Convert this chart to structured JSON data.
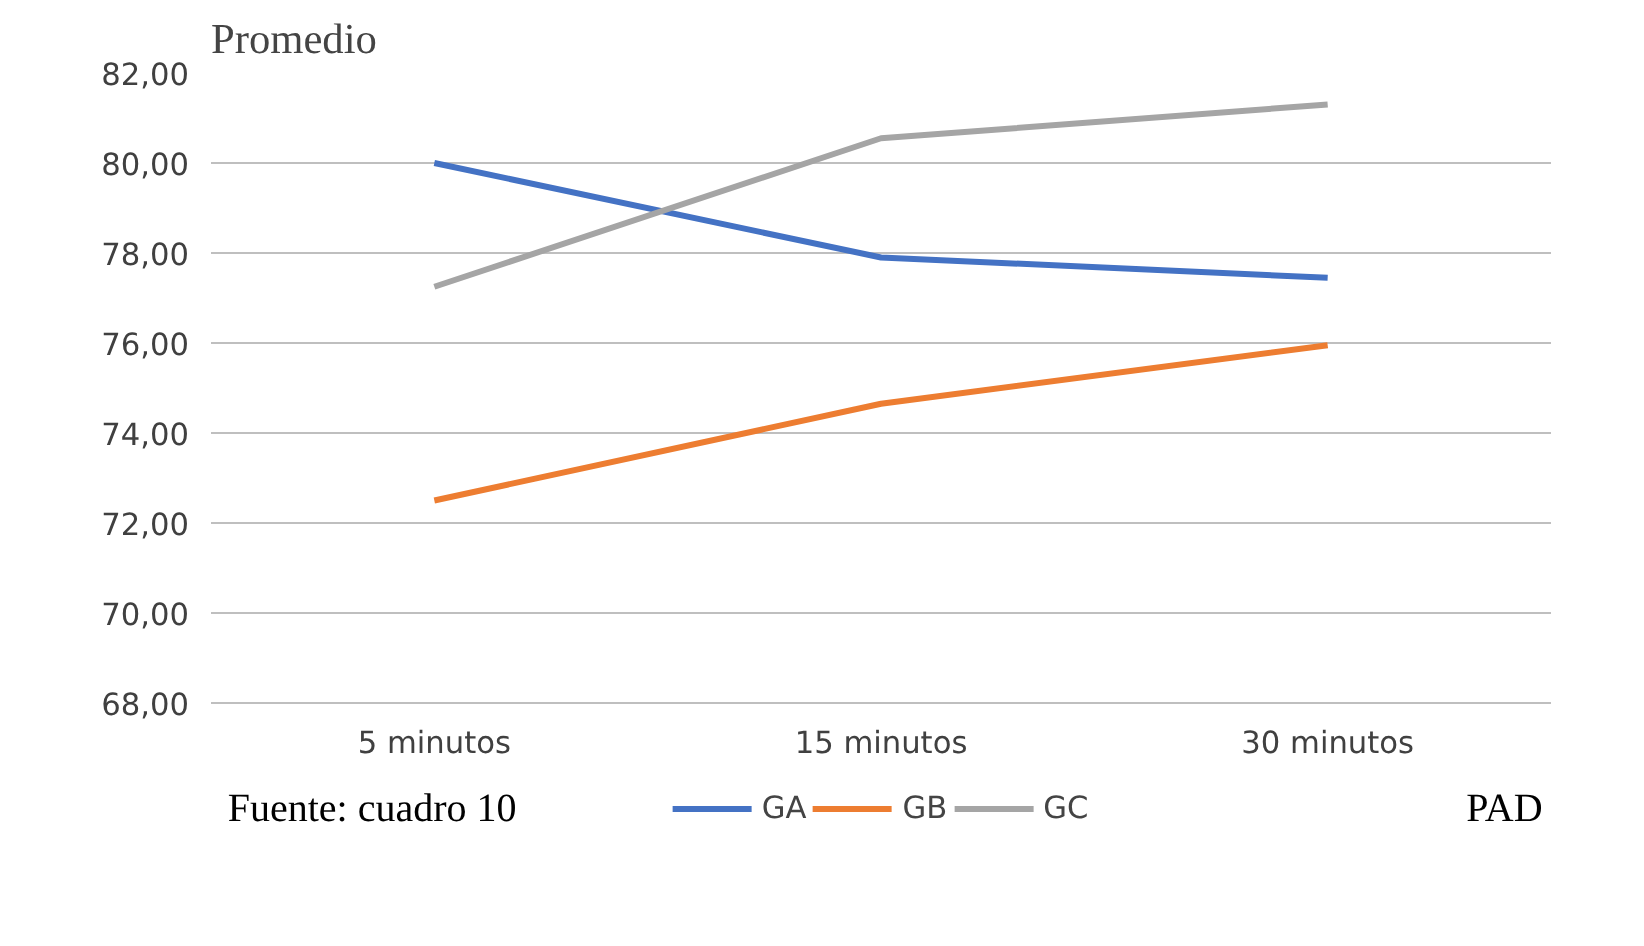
{
  "chart_data": {
    "type": "line",
    "ylabel": "Promedio",
    "categories": [
      "5 minutos",
      "15 minutos",
      "30 minutos"
    ],
    "series": [
      {
        "name": "GA",
        "color": "#4472c4",
        "values": [
          80.0,
          77.9,
          77.45
        ]
      },
      {
        "name": "GB",
        "color": "#ed7d31",
        "values": [
          72.5,
          74.65,
          75.95
        ]
      },
      {
        "name": "GC",
        "color": "#a5a5a5",
        "values": [
          77.25,
          80.55,
          81.3
        ]
      }
    ],
    "ylim": [
      68,
      82
    ],
    "yticks": [
      {
        "value": 68,
        "label": "68,00"
      },
      {
        "value": 70,
        "label": "70,00"
      },
      {
        "value": 72,
        "label": "72,00"
      },
      {
        "value": 74,
        "label": "74,00"
      },
      {
        "value": 76,
        "label": "76,00"
      },
      {
        "value": 78,
        "label": "78,00"
      },
      {
        "value": 80,
        "label": "80,00"
      },
      {
        "value": 82,
        "label": "82,00"
      }
    ],
    "grid": "y",
    "legend": "bottom",
    "marker": "none",
    "line_style": "solid",
    "annotations": [
      "Fuente: cuadro 10",
      "PAD"
    ]
  }
}
